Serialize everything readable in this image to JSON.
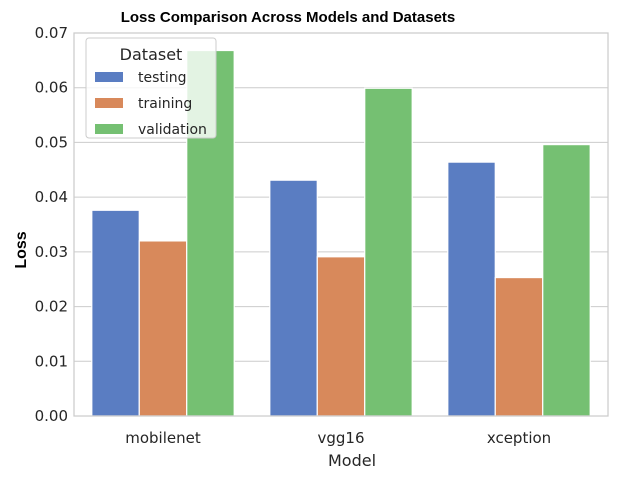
{
  "chart_data": {
    "type": "bar",
    "title": "Loss Comparison Across Models and Datasets",
    "xlabel": "Model",
    "ylabel": "Loss",
    "categories": [
      "mobilenet",
      "vgg16",
      "xception"
    ],
    "series": [
      {
        "name": "testing",
        "color": "#5a7dc2",
        "values": [
          0.0376,
          0.0431,
          0.0464
        ]
      },
      {
        "name": "training",
        "color": "#d8895b",
        "values": [
          0.032,
          0.0291,
          0.0253
        ]
      },
      {
        "name": "validation",
        "color": "#75c072",
        "values": [
          0.0668,
          0.0599,
          0.0496
        ]
      }
    ],
    "ylim": [
      0,
      0.07
    ],
    "yticks": [
      "0.00",
      "0.01",
      "0.02",
      "0.03",
      "0.04",
      "0.05",
      "0.06",
      "0.07"
    ],
    "grid": "horizontal",
    "legend": {
      "title": "Dataset",
      "placement": "top-left"
    }
  }
}
